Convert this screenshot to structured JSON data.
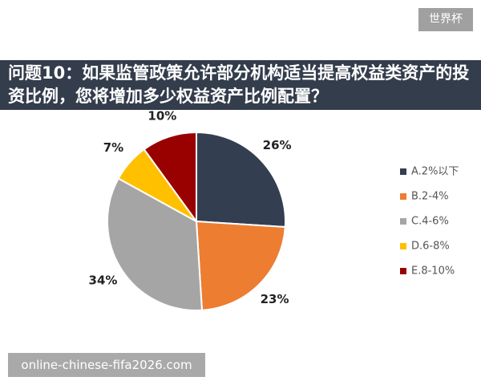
{
  "tag": "世界杯",
  "watermark": "online-chinese-fifa2026.com",
  "chart_data": {
    "type": "pie",
    "title": "问题10：如果监管政策允许部分机构适当提高权益类资产的投资比例，您将增加多少权益资产比例配置？",
    "categories": [
      "A.2%以下",
      "B.2-4%",
      "C.4-6%",
      "D.6-8%",
      "E.8-10%"
    ],
    "values": [
      26,
      23,
      34,
      7,
      10
    ],
    "value_labels": [
      "26%",
      "23%",
      "34%",
      "7%",
      "10%"
    ],
    "colors": [
      "#333f50",
      "#ed7d31",
      "#a5a5a5",
      "#ffc000",
      "#990000"
    ],
    "legend": "right"
  }
}
